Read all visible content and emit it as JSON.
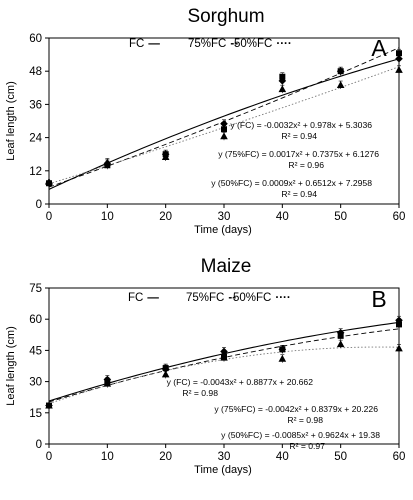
{
  "chart_data": [
    {
      "type": "scatter",
      "title": "Sorghum",
      "panel_label": "A",
      "xlabel": "Time (days)",
      "ylabel": "Leaf length (cm)",
      "xlim": [
        0,
        60
      ],
      "ylim": [
        0,
        60
      ],
      "xticks": [
        0,
        10,
        20,
        30,
        40,
        50,
        60
      ],
      "yticks": [
        0,
        12,
        24,
        36,
        48,
        60
      ],
      "grid": false,
      "legend": {
        "position": "top-center",
        "items": [
          {
            "label": "FC",
            "symbol": "—",
            "style": "solid"
          },
          {
            "label": "75%FC",
            "symbol": "--",
            "style": "dashed"
          },
          {
            "label": "50%FC",
            "symbol": "····",
            "style": "dotted"
          }
        ]
      },
      "x": [
        0,
        10,
        20,
        30,
        40,
        50,
        60
      ],
      "series": [
        {
          "key": "FC",
          "marker": "diamond",
          "values": [
            7.5,
            14.5,
            18,
            29,
            44.5,
            48,
            52.5
          ],
          "trend": {
            "a": -0.0032,
            "b": 0.978,
            "c": 5.3036,
            "style": "solid"
          }
        },
        {
          "key": "75FC",
          "marker": "square",
          "values": [
            7.5,
            14,
            18,
            27,
            46,
            48,
            54.5
          ],
          "trend": {
            "a": 0.0017,
            "b": 0.7375,
            "c": 6.1276,
            "style": "dashed"
          }
        },
        {
          "key": "50FC",
          "marker": "triangle",
          "values": [
            8,
            15,
            17,
            24.5,
            41.5,
            43,
            48.5
          ],
          "trend": {
            "a": 0.0009,
            "b": 0.6512,
            "c": 7.2958,
            "style": "dotted"
          }
        }
      ],
      "annotations": [
        "y (FC) = -0.0032x² + 0.978x + 5.3036",
        "R² = 0.94",
        "y (75%FC) = 0.0017x² + 0.7375x + 6.1276",
        "R² = 0.96",
        "y (50%FC) = 0.0009x² + 0.6512x + 7.2958",
        "R² = 0.94"
      ]
    },
    {
      "type": "scatter",
      "title": "Maize",
      "panel_label": "B",
      "xlabel": "Time (days)",
      "ylabel": "Leaf length (cm)",
      "xlim": [
        0,
        60
      ],
      "ylim": [
        0,
        75
      ],
      "xticks": [
        0,
        10,
        20,
        30,
        40,
        50,
        60
      ],
      "yticks": [
        0,
        15,
        30,
        45,
        60,
        75
      ],
      "grid": false,
      "legend": {
        "position": "top-center",
        "items": [
          {
            "label": "FC",
            "symbol": "—",
            "style": "solid"
          },
          {
            "label": "75%FC",
            "symbol": "--",
            "style": "dashed"
          },
          {
            "label": "50%FC",
            "symbol": "····",
            "style": "dotted"
          }
        ]
      },
      "x": [
        0,
        10,
        20,
        30,
        40,
        50,
        60
      ],
      "series": [
        {
          "key": "FC",
          "marker": "diamond",
          "values": [
            18.5,
            31,
            36,
            44.5,
            45.5,
            53.5,
            59.5
          ],
          "trend": {
            "a": -0.0043,
            "b": 0.8877,
            "c": 20.662,
            "style": "solid"
          }
        },
        {
          "key": "75FC",
          "marker": "square",
          "values": [
            18.5,
            30,
            36.5,
            42,
            45.5,
            52,
            57.5
          ],
          "trend": {
            "a": -0.0042,
            "b": 0.8379,
            "c": 20.226,
            "style": "dashed"
          }
        },
        {
          "key": "50FC",
          "marker": "triangle",
          "values": [
            18.5,
            29,
            33.5,
            41.5,
            41,
            48,
            46
          ],
          "trend": {
            "a": -0.0085,
            "b": 0.9624,
            "c": 19.38,
            "style": "dotted"
          }
        }
      ],
      "annotations": [
        "y (FC) = -0.0043x² + 0.8877x + 20.662",
        "R² = 0.98",
        "y (75%FC) = -0.0042x² + 0.8379x + 20.226",
        "R² = 0.98",
        "y (50%FC) = -0.0085x² + 0.9624x + 19.38",
        "R² = 0.97"
      ]
    }
  ]
}
